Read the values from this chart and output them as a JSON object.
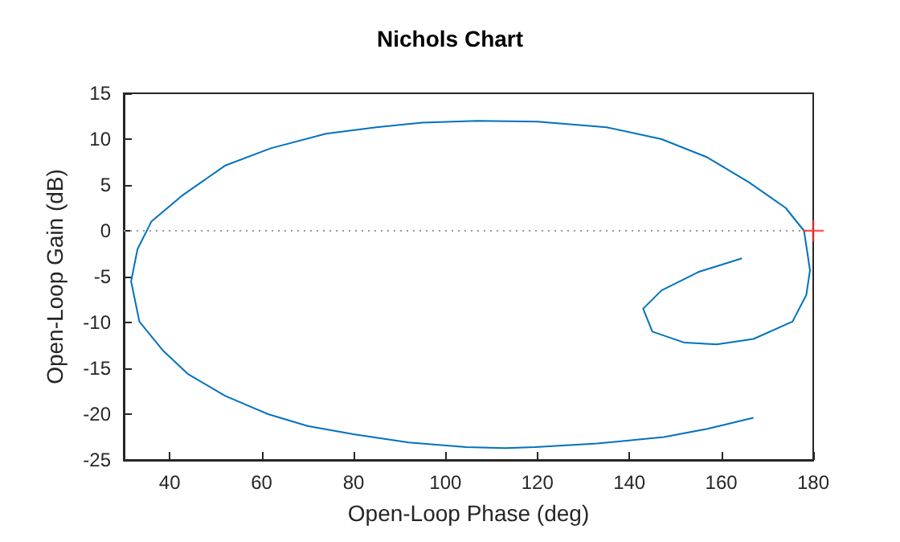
{
  "chart_data": {
    "type": "line",
    "title": "Nichols Chart",
    "xlabel": "Open-Loop Phase (deg)",
    "ylabel": "Open-Loop Gain (dB)",
    "xlim": [
      30,
      180
    ],
    "xticks": [
      40,
      60,
      80,
      100,
      120,
      140,
      160,
      180
    ],
    "ylim": [
      -25,
      15
    ],
    "yticks": [
      -25,
      -20,
      -15,
      -10,
      -5,
      0,
      5,
      10,
      15
    ],
    "grid": false,
    "series": [
      {
        "color": "#0072bd",
        "marker": "none",
        "line_style": "solid",
        "x": [
          164.5,
          155,
          147,
          143,
          145,
          152,
          159,
          167,
          175.5,
          178.5,
          179.3,
          178,
          174,
          166,
          157,
          147,
          135,
          120,
          107,
          95,
          85,
          74,
          62,
          52,
          42.6,
          36,
          33,
          31.6,
          33.4,
          38.6,
          43.9,
          52,
          61.4,
          70,
          80,
          92,
          104.5,
          113,
          119.5,
          133,
          147.5,
          157,
          167
        ],
        "values": [
          -3,
          -4.5,
          -6.5,
          -8.5,
          -11,
          -12.2,
          -12.4,
          -11.8,
          -9.9,
          -7,
          -4.3,
          0,
          2.5,
          5.3,
          8,
          10,
          11.3,
          11.9,
          12,
          11.8,
          11.3,
          10.6,
          9,
          7.1,
          3.8,
          1,
          -2,
          -5.5,
          -9.9,
          -13.1,
          -15.6,
          -18,
          -20,
          -21.3,
          -22.2,
          -23.1,
          -23.6,
          -23.7,
          -23.6,
          -23.2,
          -22.5,
          -21.6,
          -20.4
        ]
      },
      {
        "type": "scatter",
        "color": "#ff3333",
        "marker": "cross",
        "x": [
          180
        ],
        "values": [
          0
        ]
      }
    ],
    "ref_lines": [
      {
        "axis": "y",
        "value": 0,
        "color": "#999999",
        "line_style": "dotted"
      }
    ]
  }
}
